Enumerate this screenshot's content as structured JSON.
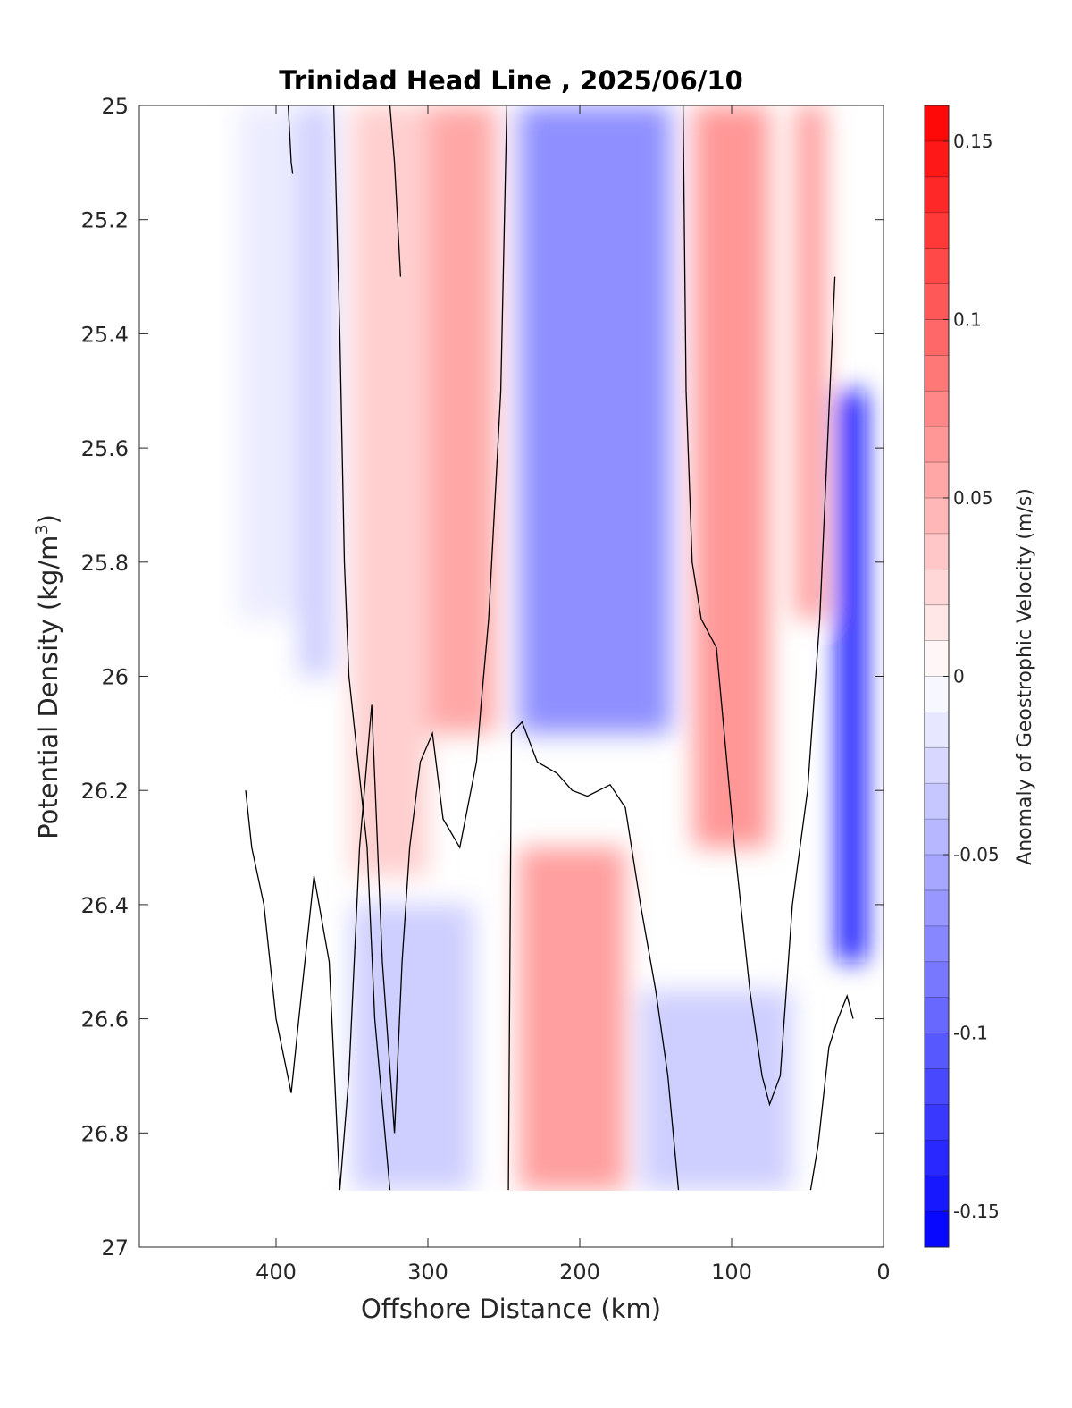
{
  "chart_data": {
    "type": "heatmap",
    "title": "Trinidad Head Line , 2025/06/10",
    "xlabel": "Offshore Distance (km)",
    "ylabel": "Potential Density (kg/m",
    "ylabel_sup": "3",
    "ylabel_close": ")",
    "colorbar_label": "Anomaly of Geostrophic Velocity (m/s)",
    "xlim": [
      490,
      0
    ],
    "x_reversed": true,
    "ylim": [
      25,
      27
    ],
    "y_reversed": true,
    "xticks": [
      400,
      300,
      200,
      100,
      0
    ],
    "xtick_labels": [
      "400",
      "300",
      "200",
      "100",
      "0"
    ],
    "yticks": [
      25,
      25.2,
      25.4,
      25.6,
      25.8,
      26,
      26.2,
      26.4,
      26.6,
      26.8,
      27
    ],
    "ytick_labels": [
      "25",
      "25.2",
      "25.4",
      "25.6",
      "25.8",
      "26",
      "26.2",
      "26.4",
      "26.6",
      "26.8",
      "27"
    ],
    "clim": [
      -0.16,
      0.16
    ],
    "colorbar_ticks": [
      0.15,
      0.1,
      0.05,
      0,
      -0.05,
      -0.1,
      -0.15
    ],
    "colorbar_tick_labels": [
      "0.15",
      "0.1",
      "0.05",
      "0",
      "-0.05",
      "-0.1",
      "-0.15"
    ],
    "colormap": {
      "negative": "#0000ff",
      "zero": "#ffffff",
      "positive": "#ff0000"
    },
    "contour_color": "#000000",
    "contour_level": 0,
    "velocity_bands": [
      {
        "x_range": [
          425,
          385
        ],
        "y_range": [
          25,
          25.9
        ],
        "value": -0.012
      },
      {
        "x_range": [
          385,
          362
        ],
        "y_range": [
          25,
          26.0
        ],
        "value": -0.03
      },
      {
        "x_range": [
          350,
          300
        ],
        "y_range": [
          25,
          26.35
        ],
        "value": 0.03
      },
      {
        "x_range": [
          300,
          255
        ],
        "y_range": [
          25,
          26.1
        ],
        "value": 0.055
      },
      {
        "x_range": [
          240,
          140
        ],
        "y_range": [
          25,
          26.1
        ],
        "value": -0.07
      },
      {
        "x_range": [
          125,
          75
        ],
        "y_range": [
          25,
          26.3
        ],
        "value": 0.065
      },
      {
        "x_range": [
          58,
          38
        ],
        "y_range": [
          25,
          25.9
        ],
        "value": 0.06
      },
      {
        "x_range": [
          30,
          12
        ],
        "y_range": [
          25.5,
          26.5
        ],
        "value": -0.15
      },
      {
        "x_range": [
          350,
          270
        ],
        "y_range": [
          26.4,
          26.9
        ],
        "value": -0.03
      },
      {
        "x_range": [
          240,
          170
        ],
        "y_range": [
          26.3,
          26.9
        ],
        "value": 0.06
      },
      {
        "x_range": [
          160,
          60
        ],
        "y_range": [
          26.55,
          26.9
        ],
        "value": -0.03
      }
    ],
    "zero_contours": [
      {
        "x": [
          420,
          416,
          408,
          400,
          390,
          385,
          375,
          365,
          358,
          352,
          345,
          337,
          330,
          322,
          317,
          312,
          305,
          297,
          290,
          279,
          268,
          265,
          260,
          252,
          248
        ],
        "y": [
          26.2,
          26.3,
          26.4,
          26.6,
          26.73,
          26.6,
          26.35,
          26.5,
          26.9,
          26.7,
          26.3,
          26.05,
          26.5,
          26.8,
          26.5,
          26.3,
          26.15,
          26.1,
          26.25,
          26.3,
          26.15,
          26.05,
          25.9,
          25.5,
          25
        ]
      },
      {
        "x": [
          362,
          358,
          355,
          352,
          348,
          340,
          335,
          330,
          325
        ],
        "y": [
          25,
          25.4,
          25.8,
          26.0,
          26.1,
          26.3,
          26.6,
          26.75,
          26.9
        ]
      },
      {
        "x": [
          247,
          245,
          238,
          228,
          215,
          205,
          195,
          180,
          170,
          160,
          150,
          142,
          135
        ],
        "y": [
          26.9,
          26.1,
          26.08,
          26.15,
          26.17,
          26.2,
          26.21,
          26.19,
          26.23,
          26.4,
          26.55,
          26.7,
          26.9
        ]
      },
      {
        "x": [
          132,
          130,
          126,
          120,
          110,
          98,
          88,
          80,
          75,
          68,
          60,
          50,
          42,
          32
        ],
        "y": [
          25,
          25.5,
          25.8,
          25.9,
          25.95,
          26.3,
          26.55,
          26.7,
          26.75,
          26.7,
          26.4,
          26.2,
          25.9,
          25.3
        ]
      },
      {
        "x": [
          48,
          43,
          36,
          30,
          24,
          20
        ],
        "y": [
          26.9,
          26.82,
          26.65,
          26.6,
          26.56,
          26.6
        ]
      },
      {
        "x": [
          392,
          390,
          389
        ],
        "y": [
          25,
          25.1,
          25.12
        ]
      },
      {
        "x": [
          318,
          320,
          322,
          325
        ],
        "y": [
          25.3,
          25.2,
          25.1,
          25
        ]
      }
    ]
  }
}
